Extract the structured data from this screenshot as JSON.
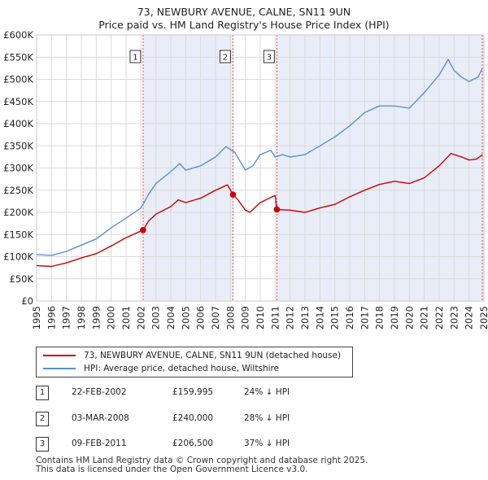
{
  "title_line1": "73, NEWBURY AVENUE, CALNE, SN11 9UN",
  "title_line2": "Price paid vs. HM Land Registry's House Price Index (HPI)",
  "colors": {
    "property": "#cc0000",
    "hpi": "#5b8ed6",
    "band": "#e8edf8",
    "vline": "#e05050"
  },
  "legend": {
    "property_label": "73, NEWBURY AVENUE, CALNE, SN11 9UN (detached house)",
    "hpi_label": "HPI: Average price, detached house, Wiltshire"
  },
  "transactions": [
    {
      "num": "1",
      "date": "22-FEB-2002",
      "price": "£159,995",
      "hpi": "24% ↓ HPI"
    },
    {
      "num": "2",
      "date": "03-MAR-2008",
      "price": "£240,000",
      "hpi": "28% ↓ HPI"
    },
    {
      "num": "3",
      "date": "09-FEB-2011",
      "price": "£206,500",
      "hpi": "37% ↓ HPI"
    }
  ],
  "footer_line1": "Contains HM Land Registry data © Crown copyright and database right 2025.",
  "footer_line2": "This data is licensed under the Open Government Licence v3.0.",
  "chart_data": {
    "type": "line",
    "title": "73, NEWBURY AVENUE, CALNE, SN11 9UN — Price paid vs. HM Land Registry's House Price Index (HPI)",
    "xlim": [
      1995,
      2025
    ],
    "ylim": [
      0,
      600000
    ],
    "y_ticks": [
      0,
      50000,
      100000,
      150000,
      200000,
      250000,
      300000,
      350000,
      400000,
      450000,
      500000,
      550000,
      600000
    ],
    "y_tick_labels": [
      "£0",
      "£50K",
      "£100K",
      "£150K",
      "£200K",
      "£250K",
      "£300K",
      "£350K",
      "£400K",
      "£450K",
      "£500K",
      "£550K",
      "£600K"
    ],
    "x_ticks": [
      1995,
      1996,
      1997,
      1998,
      1999,
      2000,
      2001,
      2002,
      2003,
      2004,
      2005,
      2006,
      2007,
      2008,
      2009,
      2010,
      2011,
      2012,
      2013,
      2014,
      2015,
      2016,
      2017,
      2018,
      2019,
      2020,
      2021,
      2022,
      2023,
      2024,
      2025
    ],
    "x_tick_labels": [
      "1995",
      "1996",
      "1997",
      "1998",
      "1999",
      "2000",
      "2001",
      "2002",
      "2003",
      "2004",
      "2005",
      "2006",
      "2007",
      "2008",
      "2009",
      "2010",
      "2011",
      "2012",
      "2013",
      "2014",
      "2015",
      "2016",
      "2017",
      "2018",
      "2019",
      "2020",
      "2021",
      "2022",
      "2023",
      "2024",
      "2025"
    ],
    "grid": true,
    "shaded_bands": [
      [
        2002.14,
        2008.17
      ],
      [
        2011.11,
        2025
      ]
    ],
    "sale_markers": [
      {
        "label": "1",
        "x": 2002.14,
        "y": 159995
      },
      {
        "label": "2",
        "x": 2008.17,
        "y": 240000
      },
      {
        "label": "3",
        "x": 2011.11,
        "y": 206500
      }
    ],
    "series": [
      {
        "name": "73, NEWBURY AVENUE, CALNE, SN11 9UN (detached house)",
        "x": [
          1995,
          1996,
          1997,
          1998,
          1999,
          2000,
          2001,
          2002.14,
          2002.5,
          2003,
          2004,
          2004.5,
          2005,
          2006,
          2007,
          2007.8,
          2008.17,
          2008.5,
          2009,
          2009.3,
          2010,
          2010.6,
          2011.0,
          2011.11,
          2012,
          2013,
          2014,
          2015,
          2016,
          2017,
          2018,
          2019,
          2020,
          2021,
          2022,
          2022.8,
          2023,
          2023.5,
          2024,
          2024.5,
          2024.9
        ],
        "y": [
          80000,
          78000,
          86000,
          97000,
          107000,
          124000,
          143000,
          159995,
          180000,
          196000,
          213000,
          228000,
          222000,
          232000,
          250000,
          262000,
          240000,
          228000,
          205000,
          200000,
          222000,
          232000,
          238000,
          206500,
          205000,
          200000,
          210000,
          218000,
          235000,
          250000,
          263000,
          270000,
          265000,
          278000,
          305000,
          333000,
          330000,
          325000,
          318000,
          320000,
          330000
        ]
      },
      {
        "name": "HPI: Average price, detached house, Wiltshire",
        "x": [
          1995,
          1996,
          1997,
          1998,
          1999,
          2000,
          2001,
          2002,
          2002.5,
          2003,
          2004,
          2004.6,
          2005,
          2006,
          2007,
          2007.7,
          2008.3,
          2009,
          2009.5,
          2010,
          2010.7,
          2011,
          2011.5,
          2012,
          2013,
          2014,
          2015,
          2016,
          2017,
          2018,
          2019,
          2020,
          2021,
          2022,
          2022.6,
          2023,
          2023.5,
          2024,
          2024.6,
          2024.9
        ],
        "y": [
          105000,
          103000,
          112000,
          126000,
          140000,
          165000,
          187000,
          210000,
          240000,
          265000,
          292000,
          310000,
          295000,
          305000,
          325000,
          348000,
          335000,
          295000,
          305000,
          330000,
          340000,
          325000,
          330000,
          325000,
          330000,
          350000,
          370000,
          395000,
          425000,
          440000,
          440000,
          435000,
          470000,
          510000,
          545000,
          520000,
          505000,
          495000,
          505000,
          525000
        ]
      }
    ]
  }
}
